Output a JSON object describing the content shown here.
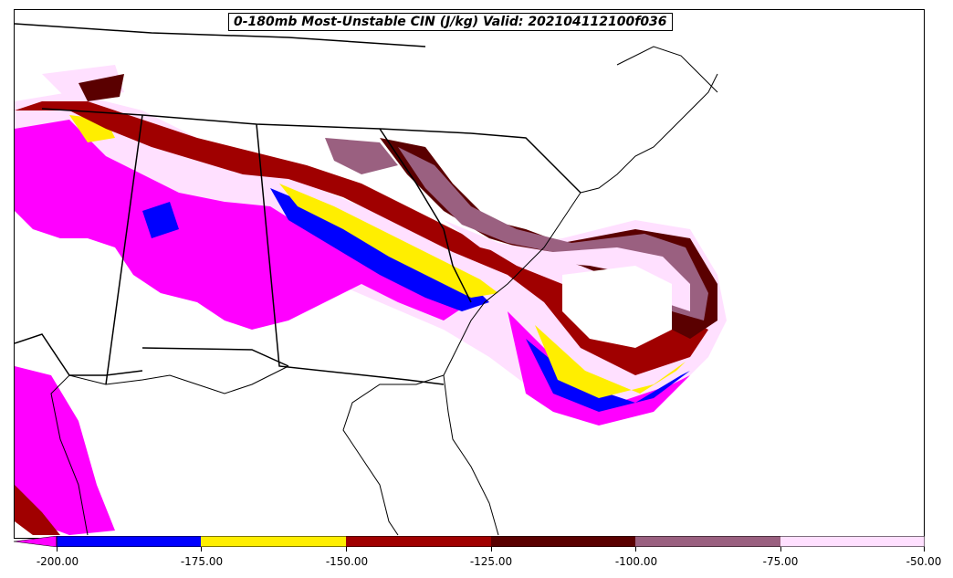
{
  "title": "0-180mb Most-Unstable CIN (J/kg) Valid: 202104112100f036",
  "colorbar": {
    "ticks": [
      "-200.00",
      "-175.00",
      "-150.00",
      "-125.00",
      "-100.00",
      "-75.00",
      "-50.00"
    ],
    "min": -200,
    "max": -50,
    "extend": "min",
    "colors": [
      "#ff00ff",
      "#0000ff",
      "#ffee00",
      "#a00000",
      "#5a0000",
      "#9a6080",
      "#ffe0ff"
    ]
  },
  "map": {
    "region": "Southeastern United States",
    "border_color": "#000000",
    "water_color": "#ffffff"
  }
}
